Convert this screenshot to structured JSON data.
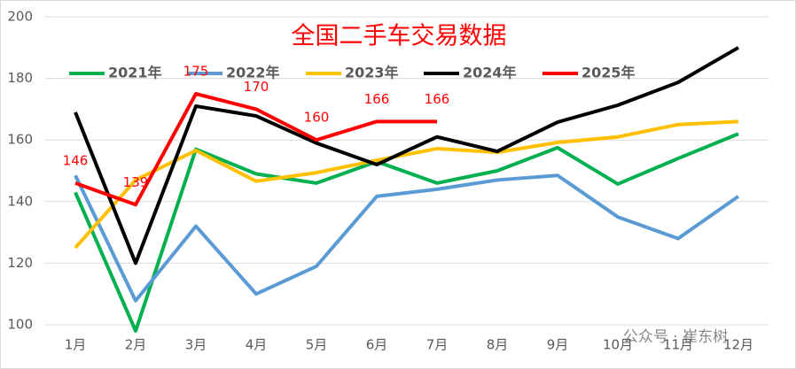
{
  "chart_data": {
    "type": "line",
    "title": "全国二手车交易数据",
    "categories": [
      "1月",
      "2月",
      "3月",
      "4月",
      "5月",
      "6月",
      "7月",
      "8月",
      "9月",
      "10月",
      "11月",
      "12月"
    ],
    "series": [
      {
        "name": "2021年",
        "color": "#00b050",
        "values": [
          143,
          98,
          157,
          149,
          146,
          153,
          146,
          150,
          157.5,
          145.7,
          154,
          162
        ]
      },
      {
        "name": "2022年",
        "color": "#5b9bd5",
        "values": [
          148.5,
          107.8,
          132,
          110,
          119,
          141.7,
          144,
          147,
          148.5,
          135,
          128,
          141.7
        ]
      },
      {
        "name": "2023年",
        "color": "#ffc000",
        "values": [
          125,
          147,
          156.6,
          146.6,
          149.4,
          153.4,
          157.2,
          156,
          159.2,
          161,
          165,
          166
        ]
      },
      {
        "name": "2024年",
        "color": "#000000",
        "values": [
          169,
          120,
          171,
          167.8,
          159,
          152,
          161,
          156.3,
          165.8,
          171.3,
          178.7,
          190
        ]
      },
      {
        "name": "2025年",
        "color": "#ff0000",
        "values": [
          146,
          139,
          175,
          170,
          160,
          166,
          166,
          null,
          null,
          null,
          null,
          null
        ],
        "labeled": true
      }
    ],
    "ylim": [
      100,
      200
    ],
    "yticks": [
      100,
      120,
      140,
      160,
      180,
      200
    ],
    "grid": true,
    "watermark": "公众号 · 崔东树"
  }
}
